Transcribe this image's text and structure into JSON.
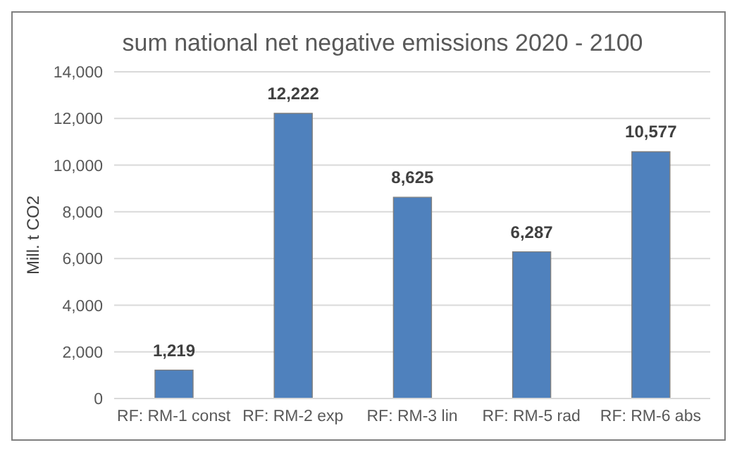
{
  "chart_data": {
    "type": "bar",
    "title": "sum national net negative emissions 2020 - 2100",
    "ylabel": "Mill. t CO2",
    "categories": [
      "RF: RM-1 const",
      "RF: RM-2 exp",
      "RF: RM-3 lin",
      "RF: RM-5 rad",
      "RF: RM-6 abs"
    ],
    "values": [
      1219,
      12222,
      8625,
      6287,
      10577
    ],
    "value_labels": [
      "1,219",
      "12,222",
      "8,625",
      "6,287",
      "10,577"
    ],
    "color": "#4f81bd",
    "ylim": [
      0,
      14000
    ],
    "yticks": [
      {
        "value": 0,
        "label": "0"
      },
      {
        "value": 2000,
        "label": "2,000"
      },
      {
        "value": 4000,
        "label": "4,000"
      },
      {
        "value": 6000,
        "label": "6,000"
      },
      {
        "value": 8000,
        "label": "8,000"
      },
      {
        "value": 10000,
        "label": "10,000"
      },
      {
        "value": 12000,
        "label": "12,000"
      },
      {
        "value": 14000,
        "label": "14,000"
      }
    ],
    "grid": "y"
  }
}
